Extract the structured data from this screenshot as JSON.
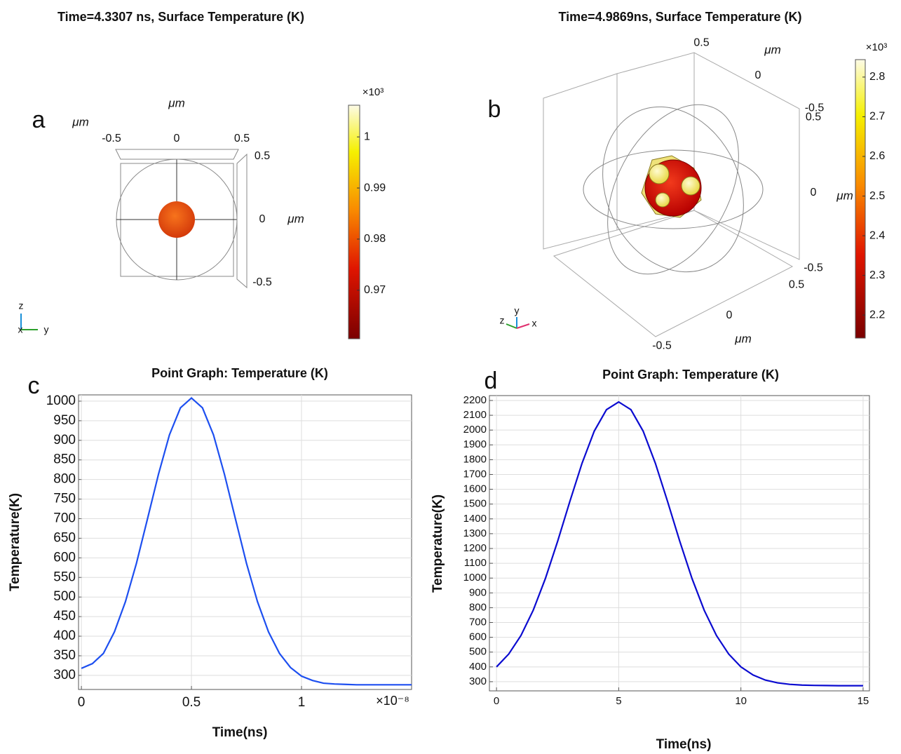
{
  "chart_data": [
    {
      "type": "surface3d",
      "label": "a",
      "title": "Time=4.3307 ns, Surface Temperature (K)",
      "axis_labels": [
        "μm",
        "μm",
        "μm"
      ],
      "yticks": [
        -0.5,
        0,
        0.5
      ],
      "zticks": [
        0.5,
        0,
        -0.5
      ],
      "triad": [
        "z",
        "x",
        "y"
      ],
      "colorbar": {
        "multiplier": "×10³",
        "lim": [
          0.9605,
          1.0062
        ],
        "ticks": [
          0.97,
          0.98,
          0.99,
          1
        ]
      }
    },
    {
      "type": "surface3d",
      "label": "b",
      "title": "Time=4.9869ns, Surface Temperature (K)",
      "axis_labels": [
        "μm",
        "μm",
        "μm"
      ],
      "yticks": [
        0.5,
        0,
        -0.5
      ],
      "zticks": [
        0.5,
        0,
        -0.5
      ],
      "xticks": [
        -0.5,
        0,
        0.5
      ],
      "triad": [
        "y",
        "z",
        "x"
      ],
      "colorbar": {
        "multiplier": "×10³",
        "lim": [
          2.142,
          2.844
        ],
        "ticks": [
          2.2,
          2.3,
          2.4,
          2.5,
          2.6,
          2.7,
          2.8
        ]
      }
    },
    {
      "type": "line",
      "label": "c",
      "title": "Point Graph: Temperature (K)",
      "x_label": "Time(ns)",
      "y_label": "Temperature(K)",
      "x_multiplier": "×10⁻⁸",
      "color": "#1d4ff0",
      "grid": true,
      "x": [
        0,
        0.05,
        0.1,
        0.15,
        0.2,
        0.25,
        0.3,
        0.35,
        0.4,
        0.45,
        0.5,
        0.55,
        0.6,
        0.65,
        0.7,
        0.75,
        0.8,
        0.85,
        0.9,
        0.95,
        1,
        1.05,
        1.1,
        1.15,
        1.2,
        1.25,
        1.3,
        1.35,
        1.4,
        1.45,
        1.5
      ],
      "values": [
        318,
        330,
        356,
        411,
        488,
        586,
        699,
        813,
        914,
        983,
        1008,
        983,
        914,
        813,
        699,
        586,
        488,
        411,
        356,
        320,
        298,
        287,
        280,
        278,
        277,
        276,
        276,
        276,
        276,
        276,
        276
      ],
      "xlim": [
        -0.013,
        1.5
      ],
      "xticks": [
        0,
        0.5,
        1
      ],
      "ylim": [
        264,
        1016
      ],
      "yticks": [
        300,
        350,
        400,
        450,
        500,
        550,
        600,
        650,
        700,
        750,
        800,
        850,
        900,
        950,
        1000
      ]
    },
    {
      "type": "line",
      "label": "d",
      "title": "Point Graph: Temperature (K)",
      "x_label": "Time(ns)",
      "y_label": "Temperature(K)",
      "color": "#0b0bd0",
      "grid": true,
      "x": [
        0,
        0.5,
        1,
        1.5,
        2,
        2.5,
        3,
        3.5,
        4,
        4.5,
        5,
        5.5,
        6,
        6.5,
        7,
        7.5,
        8,
        8.5,
        9,
        9.5,
        10,
        10.5,
        11,
        11.5,
        12,
        12.5,
        13,
        13.5,
        14,
        14.5,
        15
      ],
      "values": [
        400,
        487,
        612,
        782,
        997,
        1248,
        1517,
        1776,
        1993,
        2138,
        2190,
        2138,
        1993,
        1776,
        1517,
        1248,
        997,
        782,
        612,
        487,
        400,
        345,
        311,
        292,
        282,
        277,
        275,
        274,
        273,
        273,
        273
      ],
      "xlim": [
        -0.29,
        15.26
      ],
      "xticks": [
        0,
        5,
        10,
        15
      ],
      "ylim": [
        238,
        2233
      ],
      "yticks": [
        300,
        400,
        500,
        600,
        700,
        800,
        900,
        1000,
        1100,
        1200,
        1300,
        1400,
        1500,
        1600,
        1700,
        1800,
        1900,
        2000,
        2100,
        2200
      ]
    }
  ]
}
